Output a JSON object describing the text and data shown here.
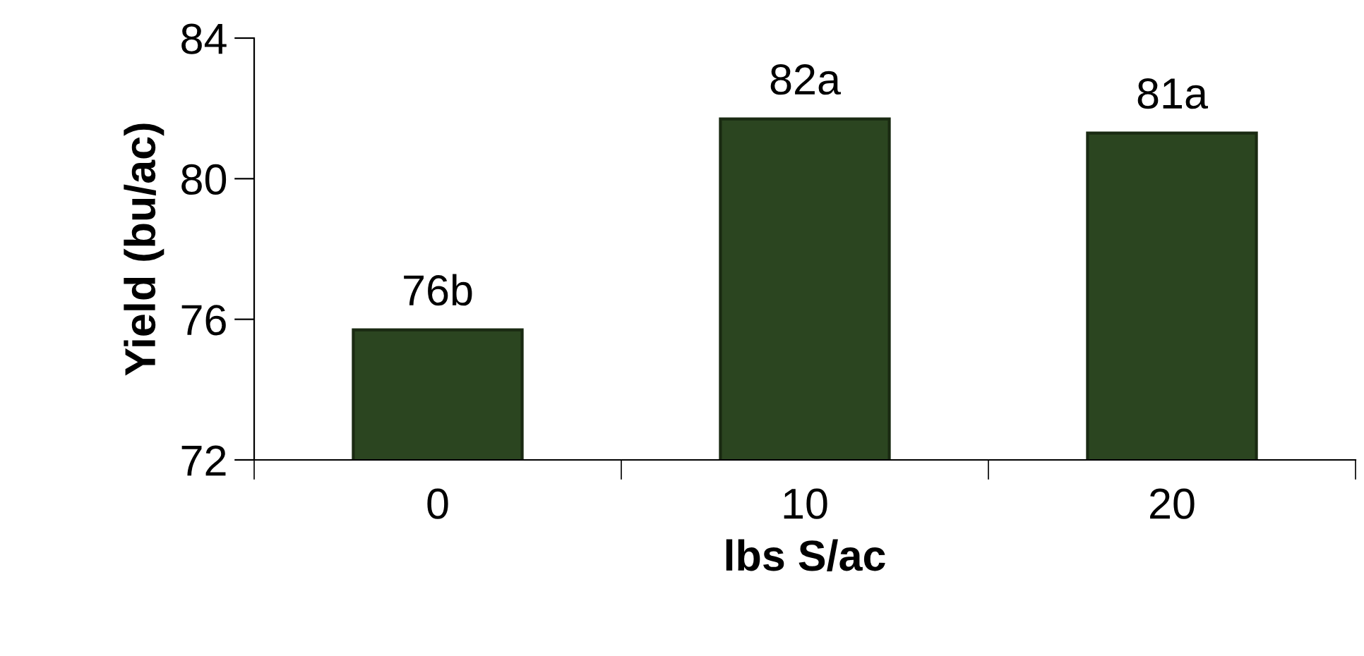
{
  "chart_data": {
    "type": "bar",
    "xlabel": "lbs S/ac",
    "ylabel": "Yield (bu/ac)",
    "categories": [
      "0",
      "10",
      "20"
    ],
    "values": [
      75.7,
      81.7,
      81.3
    ],
    "value_labels": [
      "76b",
      "82a",
      "81a"
    ],
    "color": "#2b4520",
    "ylim": [
      72,
      84
    ],
    "yticks": [
      72,
      76,
      80,
      84
    ],
    "grid": false,
    "legend": false
  }
}
